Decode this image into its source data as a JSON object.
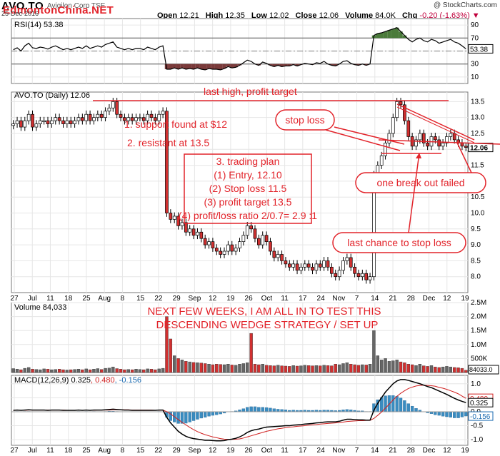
{
  "header": {
    "ticker": "AVO.TO",
    "ticker_sub": "Avigilon Corp TSE",
    "date": "25-Dec-2016",
    "watermark": "EdmontonChina.NET",
    "copyright": "@ StockCharts.com",
    "open_label": "Open",
    "open": "12.21",
    "high_label": "High",
    "high": "12.35",
    "low_label": "Low",
    "low": "12.02",
    "close_label": "Close",
    "close": "12.06",
    "volume_label": "Volume",
    "volume": "84.0K",
    "chg_label": "Chg",
    "chg": "-0.20 (-1.63%) ▼"
  },
  "colors": {
    "up": "#000000",
    "down": "#d03030",
    "annotation": "#e2232a",
    "rsi_fill_up": "#4a7a3a",
    "rsi_fill_down": "#7a3a3a",
    "macd_hist": "#3a8cc0",
    "volume_down": "#d03030",
    "volume_up": "#666666"
  },
  "chart_data": [
    {
      "type": "candlestick",
      "title": "AVO.TO (Daily) 12.06",
      "ylim": [
        7.5,
        13.8
      ],
      "y_ticks": [
        "13.5",
        "13.0",
        "12.5",
        "12.0",
        "11.5",
        "11.0",
        "10.5",
        "10.0",
        "9.5",
        "9.0",
        "8.5",
        "8.0"
      ],
      "last_value_label": "12.06",
      "closes": [
        12.8,
        12.9,
        12.7,
        12.9,
        13.1,
        12.7,
        12.8,
        12.9,
        12.9,
        12.8,
        12.9,
        13.0,
        12.9,
        12.8,
        12.9,
        12.8,
        12.9,
        13.0,
        12.9,
        13.1,
        12.9,
        13.0,
        13.1,
        13.0,
        13.2,
        13.3,
        13.5,
        13.1,
        13.0,
        12.9,
        13.0,
        12.9,
        13.0,
        13.0,
        12.9,
        13.1,
        13.0,
        12.9,
        13.1,
        13.2,
        10.0,
        9.8,
        9.9,
        9.6,
        9.7,
        9.4,
        9.5,
        9.3,
        9.4,
        9.2,
        9.0,
        9.1,
        8.9,
        8.8,
        8.7,
        8.8,
        9.0,
        8.8,
        8.9,
        9.1,
        9.3,
        9.6,
        9.5,
        9.2,
        9.0,
        9.3,
        9.1,
        8.8,
        8.6,
        8.7,
        8.5,
        8.4,
        8.3,
        8.4,
        8.2,
        8.3,
        8.4,
        8.3,
        8.2,
        8.4,
        8.3,
        8.5,
        8.3,
        8.1,
        8.0,
        8.2,
        8.5,
        8.6,
        8.3,
        8.1,
        8.0,
        8.1,
        7.9,
        8.0,
        11.2,
        11.5,
        11.8,
        12.2,
        12.5,
        13.0,
        13.5,
        13.4,
        12.9,
        12.4,
        12.1,
        12.3,
        12.5,
        12.2,
        12.1,
        12.4,
        12.3,
        12.1,
        12.2,
        12.4,
        12.5,
        12.3,
        12.2,
        12.1,
        12.06
      ],
      "annotations": [
        "last high, profit target",
        "1. support found at $12",
        "2. resistant at 13.5",
        "stop loss",
        "one break out failed",
        "last chance to stop loss",
        "3. trading plan",
        "(1) Entry, 12.10",
        "(2) Stop loss 11.5",
        "(3) profit target 13.5",
        "(4) profit/loss ratio 2/0.7= 2.9 :1"
      ]
    },
    {
      "type": "line",
      "title": "RSI(14) 53.38",
      "ylim": [
        0,
        100
      ],
      "y_ticks": [
        "90",
        "70",
        "50",
        "30",
        "10"
      ],
      "last_value_label": "53.38",
      "values": [
        52,
        55,
        50,
        58,
        62,
        55,
        54,
        56,
        55,
        53,
        56,
        58,
        55,
        52,
        54,
        52,
        54,
        56,
        54,
        58,
        54,
        56,
        58,
        56,
        60,
        62,
        64,
        56,
        54,
        52,
        54,
        52,
        54,
        54,
        52,
        56,
        54,
        52,
        56,
        58,
        22,
        22,
        24,
        22,
        24,
        22,
        23,
        22,
        24,
        22,
        21,
        23,
        22,
        22,
        21,
        23,
        26,
        24,
        25,
        28,
        32,
        36,
        34,
        30,
        28,
        33,
        31,
        28,
        26,
        28,
        26,
        27,
        27,
        29,
        27,
        29,
        31,
        30,
        29,
        32,
        31,
        34,
        30,
        28,
        27,
        30,
        34,
        35,
        31,
        29,
        28,
        30,
        28,
        30,
        74,
        77,
        78,
        80,
        82,
        84,
        86,
        80,
        74,
        68,
        64,
        68,
        70,
        66,
        64,
        68,
        66,
        62,
        64,
        66,
        68,
        64,
        62,
        58,
        53.38
      ]
    },
    {
      "type": "bar",
      "title": "Volume 84,033",
      "ylim": [
        0,
        2.5
      ],
      "y_ticks": [
        "2.5M",
        "2.0M",
        "1.5M",
        "1.0M",
        "500K"
      ],
      "last_value_label": "84033.0",
      "values": [
        0.14,
        0.12,
        0.1,
        0.15,
        0.18,
        0.12,
        0.11,
        0.1,
        0.13,
        0.12,
        0.1,
        0.11,
        0.12,
        0.1,
        0.09,
        0.1,
        0.11,
        0.12,
        0.1,
        0.13,
        0.1,
        0.12,
        0.14,
        0.11,
        0.15,
        0.16,
        0.2,
        0.14,
        0.12,
        0.1,
        0.11,
        0.1,
        0.12,
        0.11,
        0.1,
        0.13,
        0.12,
        0.1,
        0.13,
        0.15,
        2.0,
        1.2,
        0.6,
        0.5,
        0.45,
        0.4,
        0.38,
        0.36,
        0.35,
        0.34,
        0.32,
        0.3,
        0.28,
        0.3,
        0.29,
        0.28,
        0.3,
        0.27,
        0.26,
        0.3,
        0.32,
        0.35,
        1.4,
        0.3,
        0.28,
        0.3,
        0.26,
        0.25,
        0.24,
        0.26,
        0.24,
        0.23,
        0.22,
        0.25,
        0.23,
        0.24,
        0.26,
        0.25,
        0.24,
        0.25,
        0.24,
        0.26,
        0.25,
        0.24,
        0.3,
        0.28,
        0.32,
        0.35,
        0.3,
        0.28,
        0.26,
        0.28,
        0.27,
        0.3,
        1.5,
        0.6,
        0.45,
        0.5,
        0.4,
        0.42,
        0.45,
        0.38,
        0.35,
        0.3,
        0.28,
        0.25,
        0.3,
        0.24,
        0.22,
        0.25,
        0.2,
        0.18,
        0.2,
        0.22,
        0.2,
        0.18,
        0.17,
        0.15,
        0.08
      ],
      "annotations": [
        "NEXT FEW WEEKS, I AM ALL IN TO TEST THIS",
        "DESCENDING WEDGE STRATEGY / SET UP"
      ]
    },
    {
      "type": "line",
      "title": "MACD(12,26,9) 0.325, 0.480, -0.156",
      "ylim": [
        -1.2,
        1.3
      ],
      "y_ticks": [
        "1.0",
        "0.5",
        "0.0",
        "-0.5",
        "-1.0"
      ],
      "last_value_labels": [
        "0.480",
        "0.325",
        "-0.156"
      ],
      "series": [
        {
          "name": "MACD(12,26,9)",
          "values": [
            0.05,
            0.06,
            0.05,
            0.06,
            0.07,
            0.06,
            0.06,
            0.06,
            0.06,
            0.05,
            0.06,
            0.06,
            0.06,
            0.05,
            0.05,
            0.05,
            0.05,
            0.06,
            0.05,
            0.06,
            0.05,
            0.06,
            0.06,
            0.06,
            0.07,
            0.08,
            0.09,
            0.08,
            0.07,
            0.06,
            0.06,
            0.05,
            0.05,
            0.05,
            0.05,
            0.05,
            0.05,
            0.05,
            0.06,
            0.06,
            -0.2,
            -0.4,
            -0.55,
            -0.7,
            -0.8,
            -0.88,
            -0.93,
            -0.96,
            -0.98,
            -1.0,
            -1.02,
            -1.02,
            -1.03,
            -1.04,
            -1.04,
            -1.03,
            -1.0,
            -0.98,
            -0.95,
            -0.9,
            -0.83,
            -0.74,
            -0.68,
            -0.64,
            -0.62,
            -0.58,
            -0.55,
            -0.54,
            -0.53,
            -0.52,
            -0.51,
            -0.5,
            -0.5,
            -0.48,
            -0.47,
            -0.46,
            -0.44,
            -0.43,
            -0.42,
            -0.4,
            -0.39,
            -0.37,
            -0.36,
            -0.36,
            -0.36,
            -0.34,
            -0.3,
            -0.27,
            -0.27,
            -0.28,
            -0.29,
            -0.29,
            -0.3,
            -0.3,
            0.05,
            0.3,
            0.5,
            0.7,
            0.85,
            1.0,
            1.1,
            1.15,
            1.15,
            1.12,
            1.08,
            1.04,
            1.0,
            0.95,
            0.9,
            0.86,
            0.8,
            0.74,
            0.68,
            0.62,
            0.55,
            0.48,
            0.42,
            0.37,
            0.325
          ]
        },
        {
          "name": "Signal",
          "values": [
            0.05,
            0.05,
            0.05,
            0.05,
            0.06,
            0.06,
            0.06,
            0.06,
            0.06,
            0.06,
            0.06,
            0.06,
            0.06,
            0.06,
            0.05,
            0.05,
            0.05,
            0.05,
            0.05,
            0.05,
            0.05,
            0.05,
            0.06,
            0.06,
            0.06,
            0.06,
            0.07,
            0.07,
            0.07,
            0.07,
            0.07,
            0.06,
            0.06,
            0.06,
            0.06,
            0.06,
            0.06,
            0.05,
            0.05,
            0.06,
            0.0,
            -0.08,
            -0.18,
            -0.28,
            -0.38,
            -0.47,
            -0.56,
            -0.64,
            -0.71,
            -0.77,
            -0.82,
            -0.86,
            -0.9,
            -0.93,
            -0.96,
            -0.98,
            -0.99,
            -0.99,
            -0.98,
            -0.97,
            -0.94,
            -0.9,
            -0.86,
            -0.82,
            -0.78,
            -0.74,
            -0.7,
            -0.67,
            -0.64,
            -0.61,
            -0.59,
            -0.57,
            -0.55,
            -0.54,
            -0.52,
            -0.51,
            -0.5,
            -0.48,
            -0.47,
            -0.46,
            -0.44,
            -0.43,
            -0.42,
            -0.41,
            -0.4,
            -0.39,
            -0.37,
            -0.35,
            -0.34,
            -0.33,
            -0.32,
            -0.32,
            -0.31,
            -0.31,
            -0.24,
            -0.13,
            -0.01,
            0.13,
            0.27,
            0.42,
            0.55,
            0.66,
            0.75,
            0.83,
            0.88,
            0.92,
            0.94,
            0.95,
            0.94,
            0.93,
            0.91,
            0.87,
            0.84,
            0.8,
            0.75,
            0.7,
            0.64,
            0.56,
            0.48
          ]
        }
      ]
    }
  ],
  "x_axis": [
    "27",
    "Jul",
    "11",
    "18",
    "25",
    "Aug",
    "8",
    "15",
    "22",
    "29",
    "Sep",
    "12",
    "19",
    "26",
    "Oct",
    "11",
    "17",
    "24",
    "Nov",
    "7",
    "14",
    "21",
    "28",
    "Dec",
    "12",
    "19"
  ]
}
